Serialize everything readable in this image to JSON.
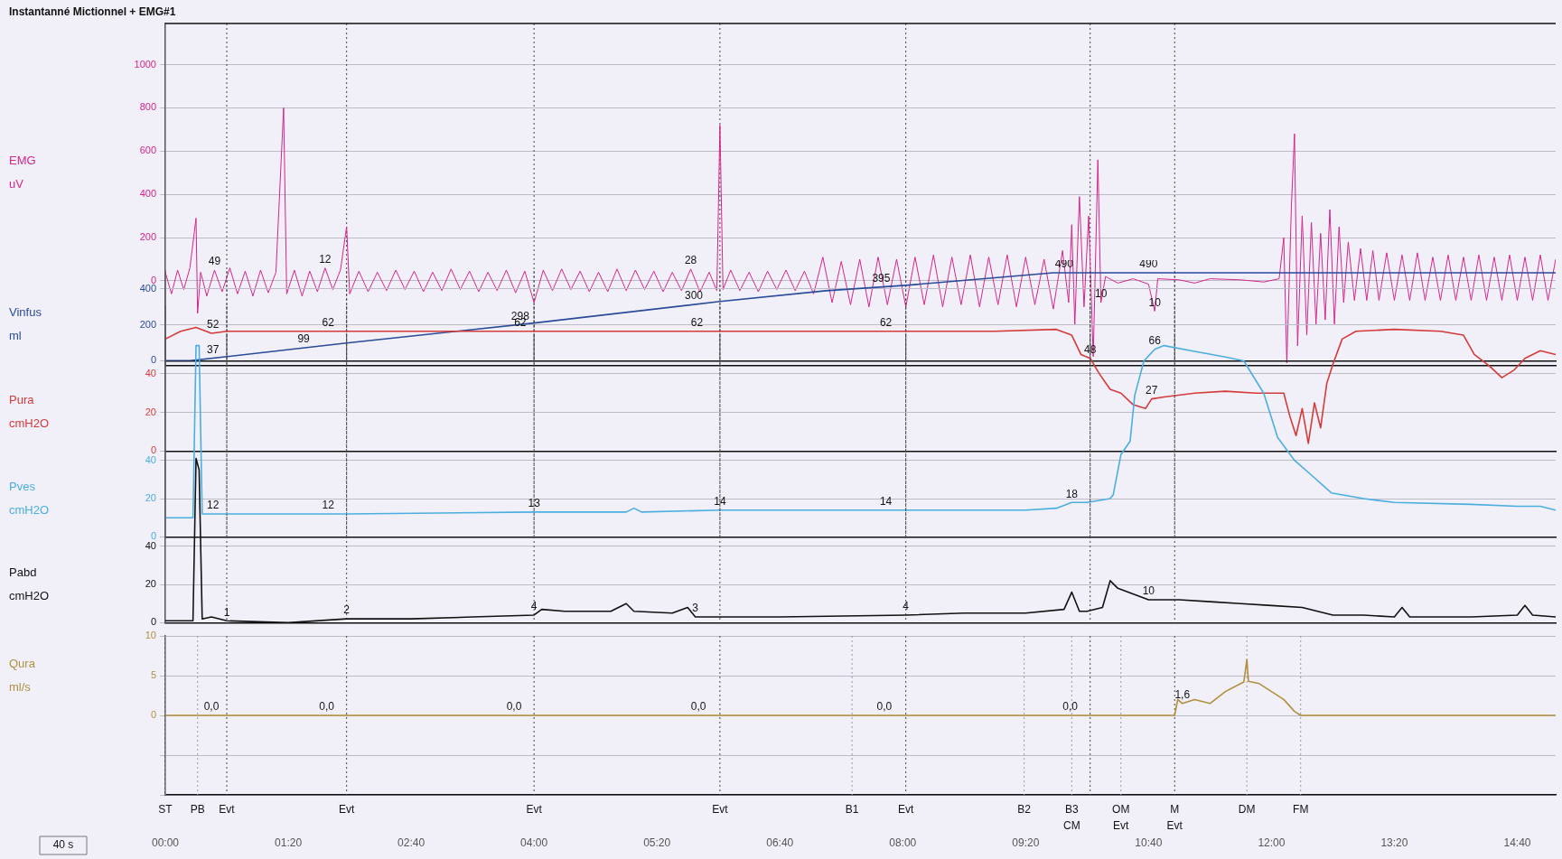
{
  "chart_data": [
    {
      "type": "line",
      "title": "Instantanné Mictionnel + EMG#1",
      "ylabel": "EMG uV",
      "color": "#d4268a",
      "xlim": [
        0,
        905
      ],
      "ylim": [
        -390,
        1190
      ],
      "yticks": [
        0,
        200,
        400,
        600,
        800,
        1000
      ],
      "tick_labels": "y",
      "grid": "y",
      "x": [
        0,
        4,
        8,
        12,
        16,
        20,
        21,
        23,
        27,
        32,
        37,
        42,
        47,
        52,
        57,
        62,
        67,
        72,
        77,
        79,
        84,
        89,
        94,
        99,
        104,
        109,
        114,
        118,
        120,
        126,
        132,
        138,
        144,
        150,
        156,
        162,
        168,
        174,
        180,
        186,
        192,
        198,
        204,
        210,
        216,
        222,
        228,
        234,
        240,
        246,
        252,
        258,
        264,
        270,
        276,
        282,
        288,
        294,
        300,
        306,
        312,
        318,
        324,
        330,
        336,
        342,
        348,
        354,
        359,
        361,
        363,
        368,
        374,
        380,
        386,
        392,
        398,
        404,
        410,
        416,
        422,
        428,
        434,
        440,
        446,
        452,
        458,
        464,
        470,
        476,
        482,
        488,
        494,
        500,
        506,
        512,
        518,
        524,
        530,
        536,
        542,
        548,
        554,
        560,
        566,
        572,
        578,
        584,
        588,
        590,
        592,
        595,
        598,
        601,
        604,
        607,
        609,
        612,
        620,
        630,
        640,
        644,
        646,
        660,
        670,
        680,
        700,
        715,
        725,
        728,
        730,
        733,
        735,
        737,
        740,
        743,
        746,
        749,
        752,
        755,
        758,
        761,
        764,
        767,
        770,
        774,
        778,
        782,
        786,
        790,
        795,
        800,
        805,
        810,
        815,
        820,
        825,
        830,
        835,
        840,
        845,
        850,
        855,
        860,
        865,
        870,
        875,
        880,
        885,
        890,
        895,
        900,
        905
      ],
      "values": [
        40,
        -60,
        50,
        -40,
        60,
        290,
        -150,
        40,
        -70,
        50,
        -50,
        60,
        -60,
        45,
        -70,
        50,
        -55,
        40,
        800,
        -60,
        50,
        -70,
        45,
        -50,
        60,
        -40,
        50,
        250,
        -60,
        45,
        -50,
        40,
        -45,
        50,
        -40,
        45,
        -50,
        40,
        -45,
        55,
        -40,
        45,
        -50,
        40,
        -45,
        50,
        -55,
        45,
        -100,
        50,
        -45,
        55,
        -40,
        45,
        -50,
        40,
        -50,
        55,
        -45,
        50,
        -40,
        45,
        -50,
        40,
        -45,
        55,
        -50,
        40,
        -45,
        720,
        -40,
        50,
        -45,
        40,
        -50,
        45,
        -40,
        50,
        -45,
        45,
        -60,
        110,
        -100,
        90,
        -110,
        100,
        -120,
        110,
        -110,
        100,
        -120,
        110,
        -110,
        120,
        -120,
        110,
        -110,
        120,
        -120,
        110,
        -110,
        120,
        -120,
        110,
        -110,
        100,
        -130,
        140,
        -100,
        260,
        -200,
        390,
        -120,
        300,
        -350,
        560,
        -100,
        20,
        -10,
        10,
        -15,
        -140,
        10,
        5,
        -10,
        10,
        5,
        -5,
        10,
        200,
        -380,
        350,
        680,
        -300,
        300,
        -250,
        270,
        -200,
        220,
        -180,
        330,
        -200,
        250,
        -100,
        180,
        -90,
        150,
        -90,
        140,
        -90,
        130,
        -90,
        120,
        -90,
        130,
        -90,
        110,
        -90,
        120,
        -90,
        110,
        -90,
        120,
        -90,
        110,
        -90,
        120,
        -90,
        110,
        -90,
        120,
        -90,
        100
      ],
      "ref_lines": [
        {
          "axis": "x",
          "value": 40,
          "line_style": "dotted"
        },
        {
          "axis": "x",
          "value": 118,
          "line_style": "dotted"
        },
        {
          "axis": "x",
          "value": 240,
          "line_style": "dotted"
        },
        {
          "axis": "x",
          "value": 361,
          "line_style": "dotted"
        },
        {
          "axis": "x",
          "value": 482,
          "line_style": "dotted"
        },
        {
          "axis": "x",
          "value": 602,
          "line_style": "dotted"
        },
        {
          "axis": "x",
          "value": 657,
          "line_style": "dotted"
        }
      ],
      "annotations": [
        {
          "text": "49",
          "x": 32,
          "y": 50
        },
        {
          "text": "12",
          "x": 104,
          "y": 60
        },
        {
          "text": "28",
          "x": 342,
          "y": 55
        },
        {
          "text": "10",
          "x": 609,
          "y": -100
        },
        {
          "text": "10",
          "x": 644,
          "y": -140
        }
      ]
    },
    {
      "type": "line",
      "ylabel": "Vinfus ml",
      "color": "#2a4a9a",
      "xlim": [
        0,
        905
      ],
      "ylim": [
        0,
        500
      ],
      "yticks": [
        0,
        200,
        400
      ],
      "tick_labels": "y",
      "grid": "y",
      "x": [
        0,
        16,
        118,
        240,
        361,
        430,
        482,
        578,
        905
      ],
      "values": [
        0,
        0,
        99,
        210,
        330,
        390,
        420,
        490,
        490
      ],
      "ref_lines": [
        {
          "axis": "x",
          "value": 40,
          "line_style": "dotted"
        },
        {
          "axis": "x",
          "value": 118,
          "line_style": "dotted"
        },
        {
          "axis": "x",
          "value": 240,
          "line_style": "dotted"
        },
        {
          "axis": "x",
          "value": 361,
          "line_style": "dotted"
        },
        {
          "axis": "x",
          "value": 482,
          "line_style": "dotted"
        },
        {
          "axis": "x",
          "value": 602,
          "line_style": "dotted"
        },
        {
          "axis": "x",
          "value": 657,
          "line_style": "dotted"
        }
      ],
      "annotations": [
        {
          "text": "37",
          "x": 31,
          "y": 14.6
        },
        {
          "text": "99",
          "x": 90,
          "y": 71.8
        },
        {
          "text": "298",
          "x": 231,
          "y": 202
        },
        {
          "text": "300",
          "x": 344,
          "y": 313
        },
        {
          "text": "395",
          "x": 466,
          "y": 411
        },
        {
          "text": "490",
          "x": 585,
          "y": 490
        },
        {
          "text": "490",
          "x": 640,
          "y": 490
        }
      ]
    },
    {
      "type": "line",
      "ylabel": "Pura cmH2O",
      "color": "#d43a3a",
      "xlim": [
        0,
        905
      ],
      "ylim": [
        0,
        75
      ],
      "yticks": [
        0,
        20,
        40
      ],
      "tick_labels": "y",
      "grid": "y",
      "x": [
        0,
        10,
        20,
        30,
        40,
        100,
        160,
        240,
        300,
        361,
        420,
        482,
        540,
        580,
        590,
        596,
        602,
        608,
        615,
        622,
        630,
        638,
        642,
        650,
        670,
        690,
        710,
        728,
        732,
        736,
        740,
        744,
        748,
        752,
        756,
        760,
        766,
        775,
        800,
        830,
        845,
        852,
        862,
        870,
        878,
        885,
        895,
        905
      ],
      "values": [
        58,
        62,
        64,
        61,
        62,
        62,
        62,
        62,
        62,
        62,
        62,
        62,
        62,
        63,
        60,
        50,
        48,
        40,
        32,
        30,
        24,
        22,
        27,
        28,
        30,
        31,
        30,
        30,
        18,
        8,
        22,
        4,
        25,
        12,
        35,
        45,
        58,
        62,
        63,
        62,
        60,
        50,
        44,
        38,
        42,
        48,
        52,
        50
      ],
      "ref_lines": [
        {
          "axis": "x",
          "value": 40,
          "line_style": "dotted"
        },
        {
          "axis": "x",
          "value": 118,
          "line_style": "dotted"
        },
        {
          "axis": "x",
          "value": 240,
          "line_style": "dotted"
        },
        {
          "axis": "x",
          "value": 361,
          "line_style": "dotted"
        },
        {
          "axis": "x",
          "value": 482,
          "line_style": "dotted"
        },
        {
          "axis": "x",
          "value": 602,
          "line_style": "dotted"
        },
        {
          "axis": "x",
          "value": 657,
          "line_style": "dotted"
        }
      ],
      "annotations": [
        {
          "text": "52",
          "x": 31,
          "y": 61.1
        },
        {
          "text": "62",
          "x": 106,
          "y": 62
        },
        {
          "text": "62",
          "x": 231,
          "y": 62
        },
        {
          "text": "62",
          "x": 346,
          "y": 62
        },
        {
          "text": "62",
          "x": 469,
          "y": 62
        },
        {
          "text": "48",
          "x": 602,
          "y": 48
        },
        {
          "text": "27",
          "x": 642,
          "y": 27
        }
      ]
    },
    {
      "type": "line",
      "ylabel": "Pves cmH2O",
      "color": "#4aaee0",
      "xlim": [
        0,
        905
      ],
      "ylim": [
        0,
        105
      ],
      "yticks": [
        0,
        20,
        40
      ],
      "tick_labels": "y",
      "grid": "y",
      "x": [
        0,
        18,
        20,
        22,
        24,
        40,
        118,
        240,
        300,
        305,
        310,
        361,
        482,
        560,
        580,
        590,
        600,
        615,
        617,
        622,
        628,
        631,
        637,
        644,
        650,
        670,
        690,
        702,
        715,
        724,
        735,
        745,
        759,
        780,
        800,
        850,
        880,
        895,
        905
      ],
      "values": [
        10,
        10,
        100,
        100,
        12,
        12,
        12,
        13,
        13,
        15,
        13,
        14,
        14,
        14,
        15,
        18,
        18,
        20,
        22,
        43,
        50,
        74,
        92,
        98,
        100,
        97,
        94,
        92,
        75,
        52,
        40,
        33,
        23,
        20,
        18,
        17,
        16,
        16,
        14
      ],
      "ref_lines": [
        {
          "axis": "x",
          "value": 40,
          "line_style": "dotted"
        },
        {
          "axis": "x",
          "value": 118,
          "line_style": "dotted"
        },
        {
          "axis": "x",
          "value": 240,
          "line_style": "dotted"
        },
        {
          "axis": "x",
          "value": 361,
          "line_style": "dotted"
        },
        {
          "axis": "x",
          "value": 482,
          "line_style": "dotted"
        },
        {
          "axis": "x",
          "value": 602,
          "line_style": "dotted"
        },
        {
          "axis": "x",
          "value": 657,
          "line_style": "dotted"
        }
      ],
      "annotations": [
        {
          "text": "12",
          "x": 31,
          "y": 12
        },
        {
          "text": "12",
          "x": 106,
          "y": 12
        },
        {
          "text": "13",
          "x": 240,
          "y": 13
        },
        {
          "text": "14",
          "x": 361,
          "y": 14
        },
        {
          "text": "14",
          "x": 469,
          "y": 14
        },
        {
          "text": "18",
          "x": 590,
          "y": 18
        },
        {
          "text": "66",
          "x": 644,
          "y": 98
        }
      ]
    },
    {
      "type": "line",
      "ylabel": "Pabd cmH2O",
      "color": "#111111",
      "xlim": [
        0,
        905
      ],
      "ylim": [
        0,
        90
      ],
      "yticks": [
        0,
        20,
        40
      ],
      "tick_labels": "y",
      "grid": "y",
      "x": [
        0,
        18,
        20,
        22,
        24,
        30,
        40,
        80,
        118,
        160,
        200,
        240,
        245,
        260,
        290,
        300,
        305,
        330,
        340,
        345,
        361,
        400,
        482,
        520,
        560,
        585,
        590,
        595,
        600,
        610,
        615,
        620,
        640,
        660,
        680,
        700,
        720,
        740,
        760,
        780,
        800,
        805,
        810,
        850,
        880,
        885,
        890,
        905
      ],
      "values": [
        1,
        1,
        86,
        80,
        2,
        3,
        1,
        0,
        2,
        2,
        3,
        4,
        7,
        6,
        6,
        10,
        6,
        5,
        8,
        3,
        3,
        3,
        4,
        5,
        5,
        7,
        16,
        6,
        6,
        8,
        22,
        18,
        12,
        12,
        11,
        10,
        9,
        8,
        4,
        4,
        3,
        8,
        3,
        3,
        4,
        9,
        4,
        3
      ],
      "ref_lines": [
        {
          "axis": "x",
          "value": 40,
          "line_style": "dotted"
        },
        {
          "axis": "x",
          "value": 118,
          "line_style": "dotted"
        },
        {
          "axis": "x",
          "value": 240,
          "line_style": "dotted"
        },
        {
          "axis": "x",
          "value": 361,
          "line_style": "dotted"
        },
        {
          "axis": "x",
          "value": 482,
          "line_style": "dotted"
        },
        {
          "axis": "x",
          "value": 602,
          "line_style": "dotted"
        },
        {
          "axis": "x",
          "value": 657,
          "line_style": "dotted"
        }
      ],
      "annotations": [
        {
          "text": "1",
          "x": 40,
          "y": 1
        },
        {
          "text": "2",
          "x": 118,
          "y": 2
        },
        {
          "text": "4",
          "x": 240,
          "y": 4
        },
        {
          "text": "3",
          "x": 345,
          "y": 3
        },
        {
          "text": "4",
          "x": 482,
          "y": 4
        },
        {
          "text": "10",
          "x": 640,
          "y": 12
        }
      ]
    },
    {
      "type": "line",
      "ylabel": "Qura ml/s",
      "color": "#b09040",
      "xlim": [
        0,
        905
      ],
      "ylim": [
        -10,
        10
      ],
      "yticks": [
        {
          "value": -10,
          "label": null
        },
        {
          "value": -5,
          "label": null
        },
        0,
        5,
        10
      ],
      "grid": "y",
      "xticks": [
        {
          "value": 0,
          "label": "00:00"
        },
        {
          "value": 80,
          "label": "01:20"
        },
        {
          "value": 160,
          "label": "02:40"
        },
        {
          "value": 240,
          "label": "04:00"
        },
        {
          "value": 320,
          "label": "05:20"
        },
        {
          "value": 400,
          "label": "06:40"
        },
        {
          "value": 480,
          "label": "08:00"
        },
        {
          "value": 560,
          "label": "09:20"
        },
        {
          "value": 640,
          "label": "10:40"
        },
        {
          "value": 720,
          "label": "12:00"
        },
        {
          "value": 800,
          "label": "13:20"
        },
        {
          "value": 880,
          "label": "14:40"
        }
      ],
      "x": [
        0,
        657,
        659,
        662,
        670,
        680,
        690,
        700,
        702,
        704,
        705,
        712,
        720,
        728,
        735,
        739,
        905
      ],
      "values": [
        0,
        0,
        2,
        1.5,
        2,
        1.5,
        3,
        4,
        4.2,
        7,
        4.3,
        4,
        3,
        2,
        0.5,
        0,
        0
      ],
      "ref_lines": [
        {
          "axis": "x",
          "value": 0,
          "line_style": "dotted",
          "label": "ST",
          "color": "#9a9aa8"
        },
        {
          "axis": "x",
          "value": 21,
          "line_style": "dotted",
          "label": "PB",
          "color": "#9a9aa8"
        },
        {
          "axis": "x",
          "value": 40,
          "line_style": "dotted",
          "label": "Evt"
        },
        {
          "axis": "x",
          "value": 118,
          "line_style": "dotted",
          "label": "Evt"
        },
        {
          "axis": "x",
          "value": 240,
          "line_style": "dotted",
          "label": "Evt"
        },
        {
          "axis": "x",
          "value": 361,
          "line_style": "dotted",
          "label": "Evt"
        },
        {
          "axis": "x",
          "value": 447,
          "line_style": "dotted",
          "label": "B1",
          "color": "#9a9aa8"
        },
        {
          "axis": "x",
          "value": 482,
          "line_style": "dotted",
          "label": "Evt"
        },
        {
          "axis": "x",
          "value": 559,
          "line_style": "dotted",
          "label": "B2",
          "color": "#9a9aa8"
        },
        {
          "axis": "x",
          "value": 590,
          "line_style": "dotted",
          "label": "B3 CM",
          "color": "#9a9aa8"
        },
        {
          "axis": "x",
          "value": 602,
          "line_style": "dotted"
        },
        {
          "axis": "x",
          "value": 622,
          "line_style": "dotted",
          "label": "OM Evt",
          "color": "#9a9aa8"
        },
        {
          "axis": "x",
          "value": 657,
          "line_style": "dotted",
          "label": "M Evt"
        },
        {
          "axis": "x",
          "value": 704,
          "line_style": "dotted",
          "label": "DM",
          "color": "#9a9aa8"
        },
        {
          "axis": "x",
          "value": 739,
          "line_style": "dotted",
          "label": "FM",
          "color": "#9a9aa8"
        }
      ],
      "annotations": [
        {
          "text": "0,0",
          "x": 30,
          "y": 0
        },
        {
          "text": "0,0",
          "x": 105,
          "y": 0
        },
        {
          "text": "0,0",
          "x": 227,
          "y": 0
        },
        {
          "text": "0,0",
          "x": 347,
          "y": 0
        },
        {
          "text": "0,0",
          "x": 468,
          "y": 0
        },
        {
          "text": "0,0",
          "x": 589,
          "y": 0
        },
        {
          "text": "1,6",
          "x": 662,
          "y": 1.5
        },
        "40 s"
      ]
    }
  ]
}
